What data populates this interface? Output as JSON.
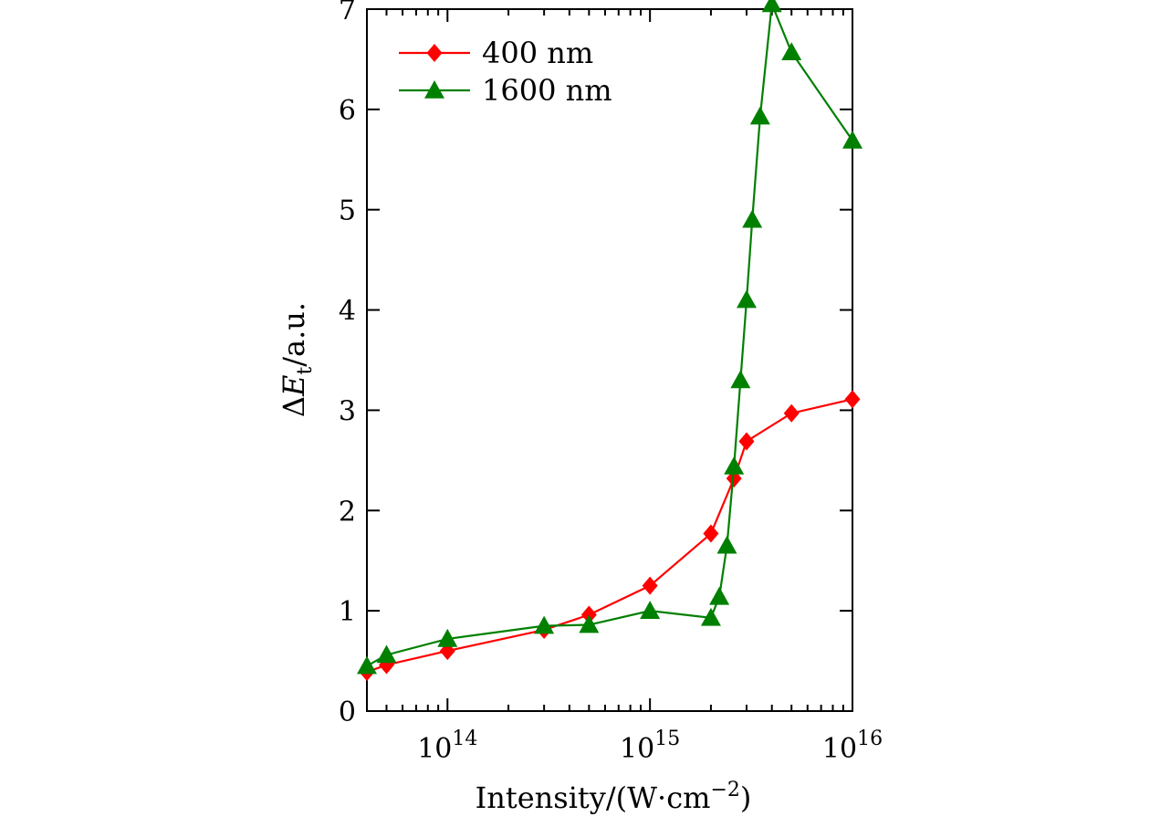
{
  "chart_data": {
    "type": "line",
    "title": "",
    "xlabel": {
      "base": "Intensity/(W·cm",
      "exp": "−2",
      "close": ")"
    },
    "ylabel": {
      "delta": "Δ",
      "var": "E",
      "sub": "t",
      "unit": "/a.u."
    },
    "xscale": "log",
    "xlim": [
      40000000000000.0,
      1e+16
    ],
    "ylim": [
      0,
      7
    ],
    "y_ticks": [
      0,
      1,
      2,
      3,
      4,
      5,
      6,
      7
    ],
    "x_ticks": [
      {
        "value": 100000000000000.0,
        "base": "10",
        "exp": "14"
      },
      {
        "value": 1000000000000000.0,
        "base": "10",
        "exp": "15"
      },
      {
        "value": 1e+16,
        "base": "10",
        "exp": "16"
      }
    ],
    "legend_position": "top-left",
    "series": [
      {
        "name": "400 nm",
        "color": "#ff0000",
        "marker": "diamond",
        "x": [
          40000000000000.0,
          50000000000000.0,
          100000000000000.0,
          300000000000000.0,
          500000000000000.0,
          1000000000000000.0,
          2000000000000000.0,
          2600000000000000.0,
          3000000000000000.0,
          5000000000000000.0,
          1e+16
        ],
        "y": [
          0.39,
          0.46,
          0.6,
          0.81,
          0.96,
          1.25,
          1.77,
          2.32,
          2.69,
          2.97,
          3.11
        ]
      },
      {
        "name": "1600 nm",
        "color": "#008000",
        "marker": "triangle",
        "x": [
          40000000000000.0,
          50000000000000.0,
          100000000000000.0,
          300000000000000.0,
          500000000000000.0,
          1000000000000000.0,
          2000000000000000.0,
          2200000000000000.0,
          2400000000000000.0,
          2600000000000000.0,
          2800000000000000.0,
          3000000000000000.0,
          3200000000000000.0,
          3500000000000000.0,
          4000000000000000.0,
          5000000000000000.0,
          1e+16
        ],
        "y": [
          0.45,
          0.56,
          0.72,
          0.85,
          0.86,
          1.0,
          0.93,
          1.14,
          1.65,
          2.44,
          3.3,
          4.1,
          4.9,
          5.93,
          7.05,
          6.57,
          5.69
        ]
      }
    ]
  }
}
